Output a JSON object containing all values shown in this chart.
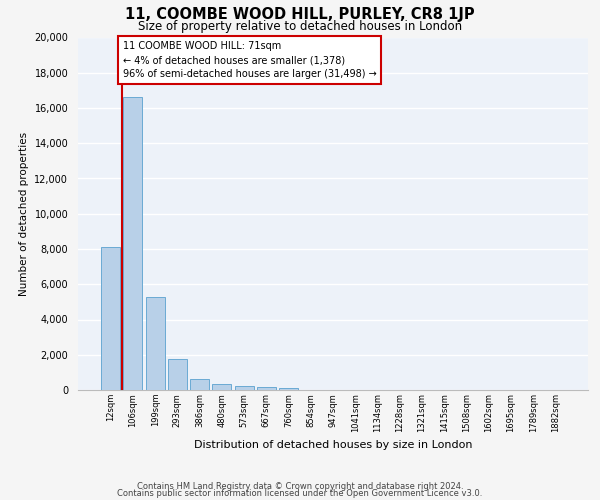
{
  "title": "11, COOMBE WOOD HILL, PURLEY, CR8 1JP",
  "subtitle": "Size of property relative to detached houses in London",
  "xlabel": "Distribution of detached houses by size in London",
  "ylabel": "Number of detached properties",
  "categories": [
    "12sqm",
    "106sqm",
    "199sqm",
    "293sqm",
    "386sqm",
    "480sqm",
    "573sqm",
    "667sqm",
    "760sqm",
    "854sqm",
    "947sqm",
    "1041sqm",
    "1134sqm",
    "1228sqm",
    "1321sqm",
    "1415sqm",
    "1508sqm",
    "1602sqm",
    "1695sqm",
    "1789sqm",
    "1882sqm"
  ],
  "bar_heights": [
    8100,
    16600,
    5300,
    1750,
    650,
    330,
    200,
    160,
    120,
    0,
    0,
    0,
    0,
    0,
    0,
    0,
    0,
    0,
    0,
    0,
    0
  ],
  "bar_color": "#b8d0e8",
  "bar_edge_color": "#6aaad4",
  "marker_color": "#cc0000",
  "ylim": [
    0,
    20000
  ],
  "yticks": [
    0,
    2000,
    4000,
    6000,
    8000,
    10000,
    12000,
    14000,
    16000,
    18000,
    20000
  ],
  "annotation_title": "11 COOMBE WOOD HILL: 71sqm",
  "annotation_line1": "← 4% of detached houses are smaller (1,378)",
  "annotation_line2": "96% of semi-detached houses are larger (31,498) →",
  "annotation_box_color": "#cc0000",
  "footer_line1": "Contains HM Land Registry data © Crown copyright and database right 2024.",
  "footer_line2": "Contains public sector information licensed under the Open Government Licence v3.0.",
  "plot_bg_color": "#edf2f9",
  "fig_bg_color": "#f5f5f5",
  "grid_color": "#ffffff"
}
